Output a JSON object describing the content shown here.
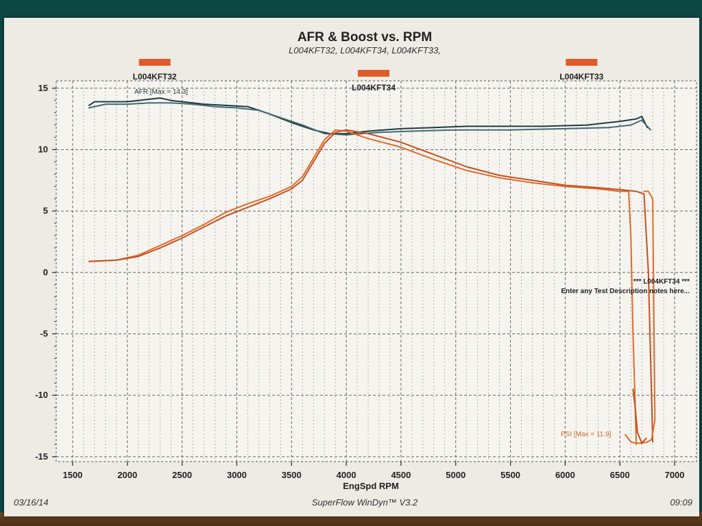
{
  "colors": {
    "afr": "#1f3a3c",
    "afr_alt": "#3f6a74",
    "boost": "#e06a2a",
    "boost_alt": "#c25020",
    "run_marker": "#e05a2a",
    "grid": "#555555"
  },
  "chart_data": {
    "type": "line",
    "title": "AFR & Boost vs. RPM",
    "subtitle": "L004KFT32, L004KFT34, L004KFT33,",
    "xlabel": "EngSpd RPM",
    "ylabel": "",
    "xlim": [
      1350,
      7200
    ],
    "ylim": [
      -15.4,
      15.6
    ],
    "xticks": [
      "1500",
      "2000",
      "2500",
      "3000",
      "3500",
      "4000",
      "4500",
      "5000",
      "5500",
      "6000",
      "6500",
      "7000"
    ],
    "yticks": [
      "15",
      "10",
      "5",
      "0",
      "-5",
      "-10",
      "-15"
    ],
    "grid": true,
    "runs": [
      {
        "name": "L004KFT32",
        "rpm": 2250
      },
      {
        "name": "L004KFT34",
        "rpm": 4250
      },
      {
        "name": "L004KFT33",
        "rpm": 6150
      }
    ],
    "annotations": {
      "afr": "AFR   [Max =  14.3]",
      "psi": "PSI   [Max =  11.9]"
    },
    "note": {
      "line1": "*** L004KFT34 ***",
      "line2": "Enter any Test Description notes here..."
    },
    "series": [
      {
        "name": "AFR",
        "color_key": "afr",
        "x": [
          1650,
          1700,
          1800,
          1900,
          2000,
          2100,
          2200,
          2300,
          2400,
          2500,
          2700,
          2900,
          3100,
          3300,
          3500,
          3700,
          3850,
          4000,
          4200,
          4500,
          4800,
          5100,
          5400,
          5800,
          6200,
          6500,
          6650,
          6700,
          6750
        ],
        "y": [
          13.6,
          13.9,
          13.9,
          13.9,
          13.9,
          14.0,
          14.1,
          14.2,
          14.0,
          13.9,
          13.7,
          13.6,
          13.5,
          12.9,
          12.2,
          11.6,
          11.3,
          11.3,
          11.5,
          11.7,
          11.8,
          11.9,
          11.9,
          11.9,
          12.0,
          12.3,
          12.5,
          12.7,
          11.8
        ]
      },
      {
        "name": "AFR",
        "color_key": "afr_alt",
        "x": [
          1650,
          1800,
          2000,
          2200,
          2400,
          2600,
          2800,
          3000,
          3200,
          3400,
          3600,
          3800,
          4000,
          4300,
          4600,
          5000,
          5500,
          6000,
          6400,
          6600,
          6700,
          6780
        ],
        "y": [
          13.4,
          13.7,
          13.7,
          13.8,
          13.8,
          13.7,
          13.5,
          13.4,
          13.2,
          12.6,
          12.0,
          11.3,
          11.2,
          11.4,
          11.5,
          11.6,
          11.6,
          11.7,
          11.8,
          12.0,
          12.4,
          11.6
        ]
      },
      {
        "name": "PSI",
        "color_key": "boost",
        "x": [
          1650,
          1900,
          2100,
          2300,
          2500,
          2700,
          2900,
          3100,
          3300,
          3500,
          3600,
          3700,
          3800,
          3900,
          4000,
          4200,
          4500,
          4800,
          5100,
          5400,
          5700,
          6000,
          6300,
          6500,
          6580,
          6600,
          6620,
          6650
        ],
        "y": [
          0.9,
          1.0,
          1.4,
          2.2,
          3.0,
          3.9,
          4.9,
          5.6,
          6.2,
          7.0,
          7.8,
          9.3,
          10.8,
          11.6,
          11.5,
          10.9,
          10.2,
          9.2,
          8.3,
          7.7,
          7.3,
          7.0,
          6.8,
          6.6,
          6.6,
          3.0,
          -5.0,
          -14.0
        ]
      },
      {
        "name": "PSI",
        "color_key": "boost_alt",
        "x": [
          1650,
          1900,
          2100,
          2300,
          2500,
          2700,
          2900,
          3100,
          3300,
          3500,
          3600,
          3700,
          3800,
          3900,
          4000,
          4200,
          4500,
          4800,
          5100,
          5400,
          5700,
          6000,
          6300,
          6550,
          6650,
          6720,
          6760,
          6800
        ],
        "y": [
          0.9,
          1.0,
          1.3,
          2.0,
          2.8,
          3.7,
          4.6,
          5.3,
          6.0,
          6.8,
          7.5,
          9.0,
          10.5,
          11.4,
          11.6,
          11.3,
          10.6,
          9.6,
          8.6,
          7.9,
          7.5,
          7.1,
          6.9,
          6.7,
          6.6,
          6.4,
          0.0,
          -13.8
        ]
      },
      {
        "name": "PSI",
        "color_key": "boost",
        "x": [
          6550,
          6600,
          6650,
          6700,
          6750,
          6790,
          6820,
          6800,
          6760,
          6720
        ],
        "y": [
          -13.2,
          -13.8,
          -13.9,
          -13.9,
          -13.8,
          -13.6,
          -12.0,
          6.0,
          6.6,
          6.6
        ]
      },
      {
        "name": "PSI",
        "color_key": "boost_alt",
        "x": [
          6620,
          6640,
          6660,
          6700,
          6740
        ],
        "y": [
          -9.5,
          -11.0,
          -13.0,
          -13.9,
          -13.5
        ]
      }
    ]
  },
  "footer": {
    "date": "03/16/14",
    "software": "SuperFlow WinDyn™ V3.2",
    "time": "09:09"
  }
}
